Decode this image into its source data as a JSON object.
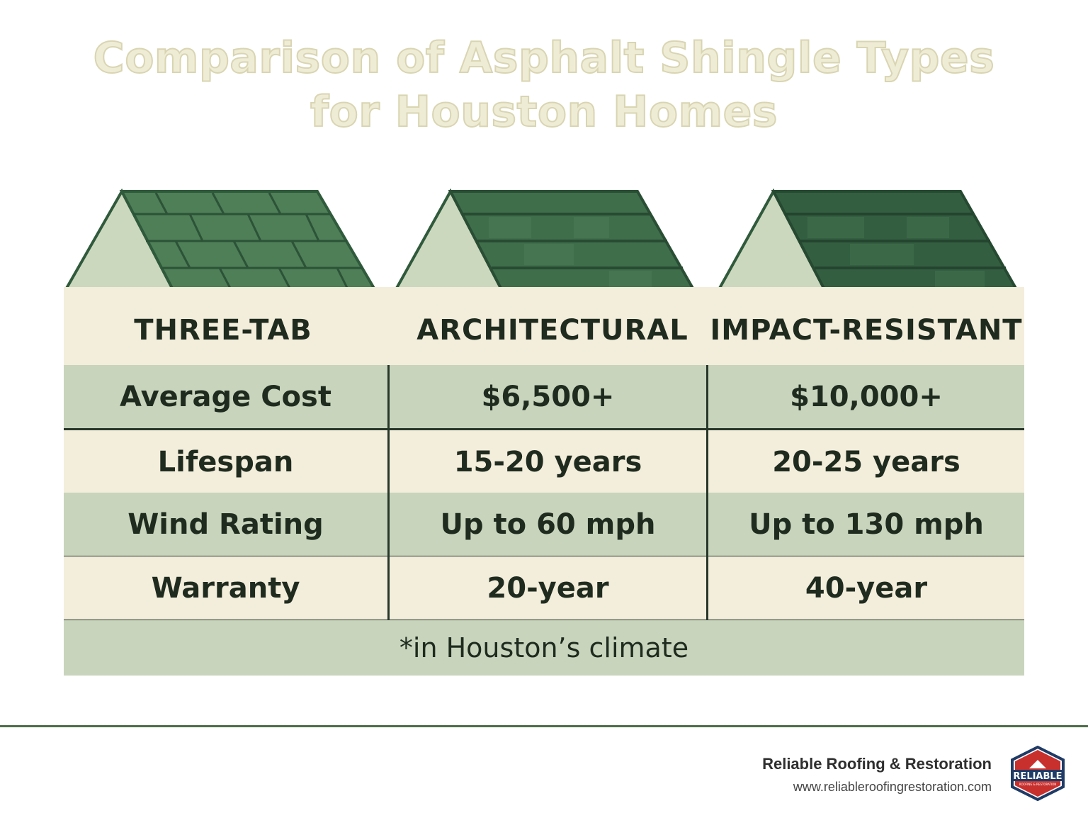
{
  "title": {
    "line1": "Comparison of Asphalt Shingle Types",
    "line2": "for Houston Homes"
  },
  "columns": [
    "THREE-TAB",
    "ARCHITECTURAL",
    "IMPACT-RESISTANT"
  ],
  "rows": [
    {
      "label": "Average Cost",
      "architectural": "$6,500+",
      "impact_resistant": "$10,000+"
    },
    {
      "label": "Lifespan",
      "architectural": "15-20 years",
      "impact_resistant": "20-25 years"
    },
    {
      "label": "Wind Rating",
      "architectural": "Up to 60 mph",
      "impact_resistant": "Up to 130 mph"
    },
    {
      "label": "Warranty",
      "architectural": "20-year",
      "impact_resistant": "40-year"
    }
  ],
  "footnote": "*in Houston’s climate",
  "brand": {
    "name": "Reliable Roofing & Restoration",
    "url": "www.reliableroofingrestoration.com",
    "logo_text": "RELIABLE",
    "logo_subtext": "ROOFING & RESTORATION"
  },
  "colors": {
    "roof_light": "#4e7f57",
    "roof_mid": "#3f6e4b",
    "roof_dark": "#335f40",
    "gable": "#ccd8be",
    "row_green": "#c8d4bc",
    "row_cream": "#f3eddb",
    "logo_red": "#c8302e",
    "logo_navy": "#1f3b66"
  }
}
